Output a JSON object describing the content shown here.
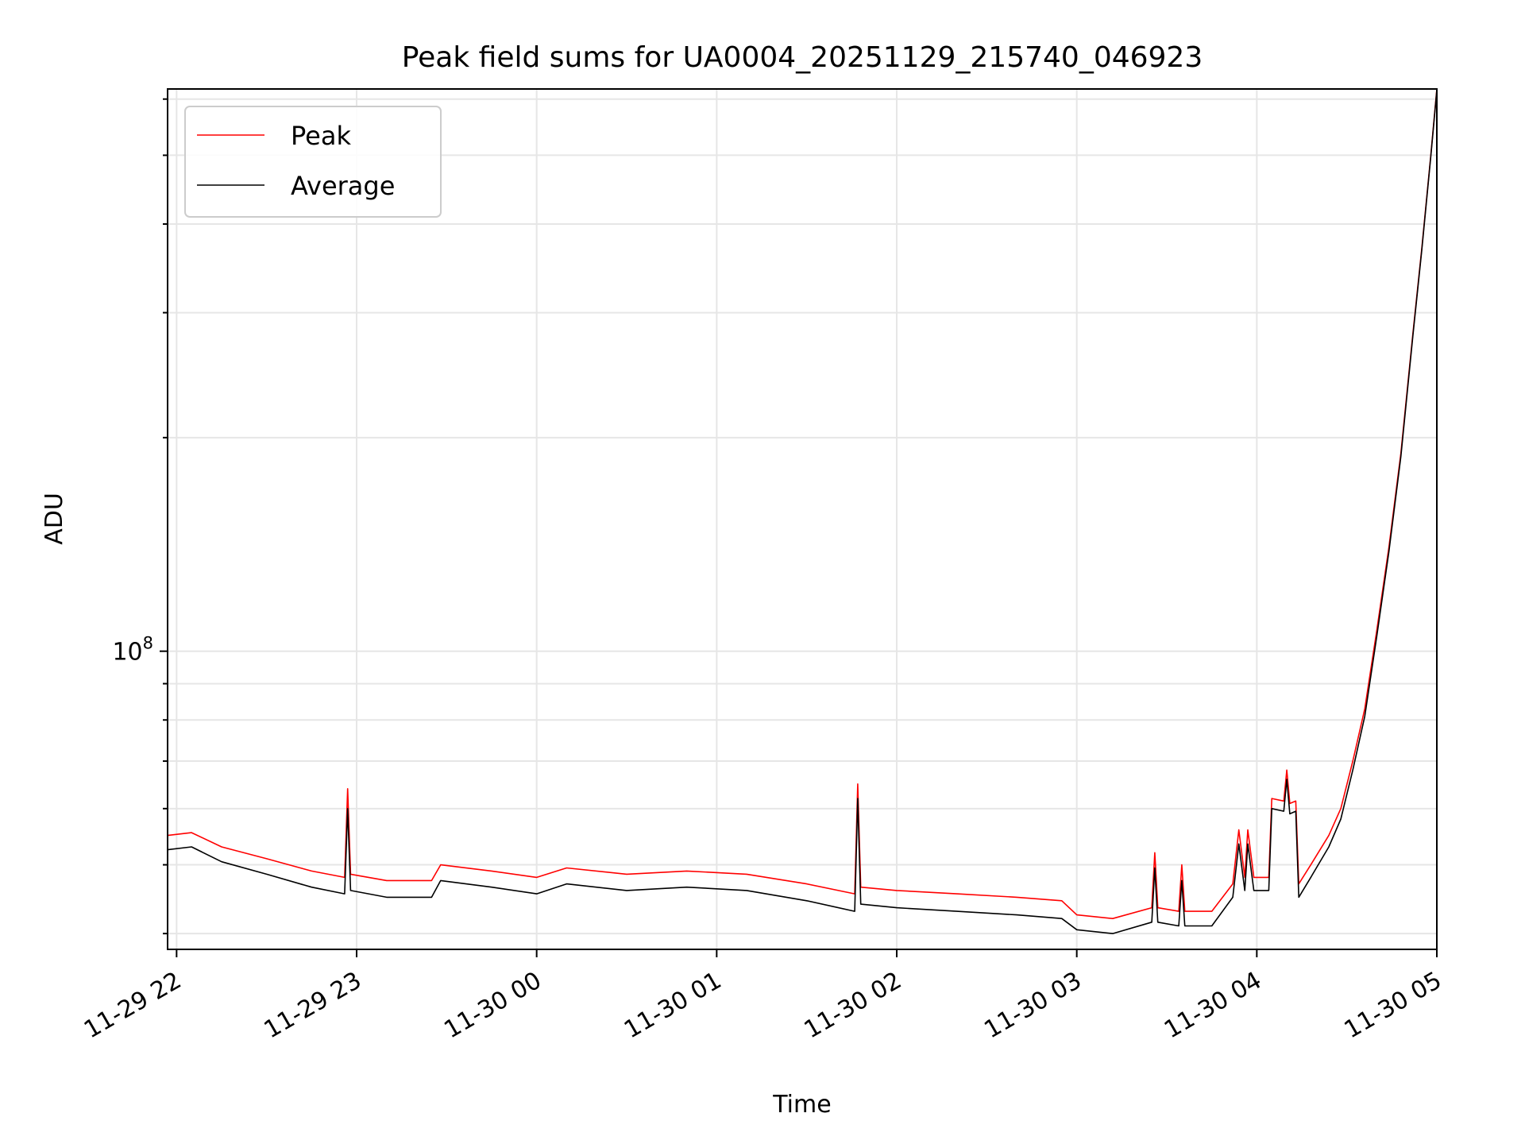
{
  "chart_data": {
    "type": "line",
    "title": "Peak field sums for UA0004_20251129_215740_046923",
    "xlabel": "Time",
    "ylabel": "ADU",
    "yscale": "log",
    "x_range": [
      "2025-11-29 21:57",
      "2025-11-30 05:00"
    ],
    "ylim": [
      38000000,
      620000000
    ],
    "y_tick_labels": [
      {
        "value": 100000000,
        "base": "10",
        "exp": "8"
      }
    ],
    "x_ticks": [
      {
        "t": "2025-11-29 22:00",
        "label": "11-29 22"
      },
      {
        "t": "2025-11-29 23:00",
        "label": "11-29 23"
      },
      {
        "t": "2025-11-30 00:00",
        "label": "11-30 00"
      },
      {
        "t": "2025-11-30 01:00",
        "label": "11-30 01"
      },
      {
        "t": "2025-11-30 02:00",
        "label": "11-30 02"
      },
      {
        "t": "2025-11-30 03:00",
        "label": "11-30 03"
      },
      {
        "t": "2025-11-30 04:00",
        "label": "11-30 04"
      },
      {
        "t": "2025-11-30 05:00",
        "label": "11-30 05"
      }
    ],
    "grid": true,
    "legend_position": "top-left",
    "series": [
      {
        "name": "Peak",
        "color": "#ff0000",
        "points": [
          [
            "2025-11-29 21:57",
            55000000
          ],
          [
            "2025-11-29 22:05",
            55500000
          ],
          [
            "2025-11-29 22:15",
            53000000
          ],
          [
            "2025-11-29 22:30",
            51000000
          ],
          [
            "2025-11-29 22:45",
            49000000
          ],
          [
            "2025-11-29 22:56",
            48000000
          ],
          [
            "2025-11-29 22:57",
            64000000
          ],
          [
            "2025-11-29 22:58",
            48500000
          ],
          [
            "2025-11-29 23:10",
            47500000
          ],
          [
            "2025-11-29 23:25",
            47500000
          ],
          [
            "2025-11-29 23:28",
            50000000
          ],
          [
            "2025-11-29 23:45",
            49000000
          ],
          [
            "2025-11-30 00:00",
            48000000
          ],
          [
            "2025-11-30 00:10",
            49500000
          ],
          [
            "2025-11-30 00:30",
            48500000
          ],
          [
            "2025-11-30 00:50",
            49000000
          ],
          [
            "2025-11-30 01:10",
            48500000
          ],
          [
            "2025-11-30 01:30",
            47000000
          ],
          [
            "2025-11-30 01:46",
            45500000
          ],
          [
            "2025-11-30 01:47",
            65000000
          ],
          [
            "2025-11-30 01:48",
            46500000
          ],
          [
            "2025-11-30 02:00",
            46000000
          ],
          [
            "2025-11-30 02:20",
            45500000
          ],
          [
            "2025-11-30 02:40",
            45000000
          ],
          [
            "2025-11-30 02:55",
            44500000
          ],
          [
            "2025-11-30 03:00",
            42500000
          ],
          [
            "2025-11-30 03:12",
            42000000
          ],
          [
            "2025-11-30 03:25",
            43500000
          ],
          [
            "2025-11-30 03:26",
            52000000
          ],
          [
            "2025-11-30 03:27",
            43500000
          ],
          [
            "2025-11-30 03:34",
            43000000
          ],
          [
            "2025-11-30 03:35",
            50000000
          ],
          [
            "2025-11-30 03:36",
            43000000
          ],
          [
            "2025-11-30 03:45",
            43000000
          ],
          [
            "2025-11-30 03:52",
            47000000
          ],
          [
            "2025-11-30 03:54",
            56000000
          ],
          [
            "2025-11-30 03:56",
            48000000
          ],
          [
            "2025-11-30 03:57",
            56000000
          ],
          [
            "2025-11-30 03:59",
            48000000
          ],
          [
            "2025-11-30 04:04",
            48000000
          ],
          [
            "2025-11-30 04:05",
            62000000
          ],
          [
            "2025-11-30 04:09",
            61500000
          ],
          [
            "2025-11-30 04:10",
            68000000
          ],
          [
            "2025-11-30 04:11",
            61000000
          ],
          [
            "2025-11-30 04:13",
            61500000
          ],
          [
            "2025-11-30 04:14",
            47000000
          ],
          [
            "2025-11-30 04:18",
            50000000
          ],
          [
            "2025-11-30 04:24",
            55000000
          ],
          [
            "2025-11-30 04:28",
            60000000
          ],
          [
            "2025-11-30 04:32",
            70000000
          ],
          [
            "2025-11-30 04:36",
            83000000
          ],
          [
            "2025-11-30 04:40",
            107000000
          ],
          [
            "2025-11-30 04:44",
            140000000
          ],
          [
            "2025-11-30 04:48",
            190000000
          ],
          [
            "2025-11-30 04:52",
            280000000
          ],
          [
            "2025-11-30 04:55",
            370000000
          ],
          [
            "2025-11-30 04:58",
            500000000
          ],
          [
            "2025-11-30 05:00",
            620000000
          ]
        ]
      },
      {
        "name": "Average",
        "color": "#000000",
        "points": [
          [
            "2025-11-29 21:57",
            52500000
          ],
          [
            "2025-11-29 22:05",
            53000000
          ],
          [
            "2025-11-29 22:15",
            50500000
          ],
          [
            "2025-11-29 22:30",
            48500000
          ],
          [
            "2025-11-29 22:45",
            46500000
          ],
          [
            "2025-11-29 22:56",
            45500000
          ],
          [
            "2025-11-29 22:57",
            60000000
          ],
          [
            "2025-11-29 22:58",
            46000000
          ],
          [
            "2025-11-29 23:10",
            45000000
          ],
          [
            "2025-11-29 23:25",
            45000000
          ],
          [
            "2025-11-29 23:28",
            47500000
          ],
          [
            "2025-11-29 23:45",
            46500000
          ],
          [
            "2025-11-30 00:00",
            45500000
          ],
          [
            "2025-11-30 00:10",
            47000000
          ],
          [
            "2025-11-30 00:30",
            46000000
          ],
          [
            "2025-11-30 00:50",
            46500000
          ],
          [
            "2025-11-30 01:10",
            46000000
          ],
          [
            "2025-11-30 01:30",
            44500000
          ],
          [
            "2025-11-30 01:46",
            43000000
          ],
          [
            "2025-11-30 01:47",
            62000000
          ],
          [
            "2025-11-30 01:48",
            44000000
          ],
          [
            "2025-11-30 02:00",
            43500000
          ],
          [
            "2025-11-30 02:20",
            43000000
          ],
          [
            "2025-11-30 02:40",
            42500000
          ],
          [
            "2025-11-30 02:55",
            42000000
          ],
          [
            "2025-11-30 03:00",
            40500000
          ],
          [
            "2025-11-30 03:12",
            40000000
          ],
          [
            "2025-11-30 03:25",
            41500000
          ],
          [
            "2025-11-30 03:26",
            49500000
          ],
          [
            "2025-11-30 03:27",
            41500000
          ],
          [
            "2025-11-30 03:34",
            41000000
          ],
          [
            "2025-11-30 03:35",
            47500000
          ],
          [
            "2025-11-30 03:36",
            41000000
          ],
          [
            "2025-11-30 03:45",
            41000000
          ],
          [
            "2025-11-30 03:52",
            45000000
          ],
          [
            "2025-11-30 03:54",
            53500000
          ],
          [
            "2025-11-30 03:56",
            46000000
          ],
          [
            "2025-11-30 03:57",
            53500000
          ],
          [
            "2025-11-30 03:59",
            46000000
          ],
          [
            "2025-11-30 04:04",
            46000000
          ],
          [
            "2025-11-30 04:05",
            60000000
          ],
          [
            "2025-11-30 04:09",
            59500000
          ],
          [
            "2025-11-30 04:10",
            66000000
          ],
          [
            "2025-11-30 04:11",
            59000000
          ],
          [
            "2025-11-30 04:13",
            59500000
          ],
          [
            "2025-11-30 04:14",
            45000000
          ],
          [
            "2025-11-30 04:18",
            48000000
          ],
          [
            "2025-11-30 04:24",
            53000000
          ],
          [
            "2025-11-30 04:28",
            58000000
          ],
          [
            "2025-11-30 04:32",
            68000000
          ],
          [
            "2025-11-30 04:36",
            81000000
          ],
          [
            "2025-11-30 04:40",
            105000000
          ],
          [
            "2025-11-30 04:44",
            138000000
          ],
          [
            "2025-11-30 04:48",
            188000000
          ],
          [
            "2025-11-30 04:52",
            278000000
          ],
          [
            "2025-11-30 04:55",
            368000000
          ],
          [
            "2025-11-30 04:58",
            498000000
          ],
          [
            "2025-11-30 05:00",
            618000000
          ]
        ]
      }
    ]
  }
}
